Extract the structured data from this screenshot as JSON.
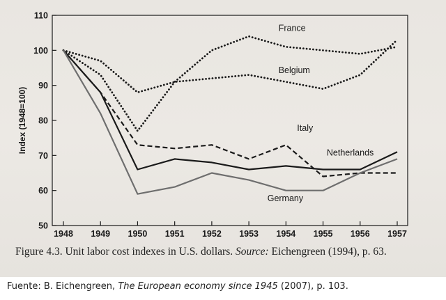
{
  "chart_data": {
    "type": "line",
    "title": "",
    "xlabel": "",
    "ylabel": "Index (1948=100)",
    "x": [
      1948,
      1949,
      1950,
      1951,
      1952,
      1953,
      1954,
      1955,
      1956,
      1957
    ],
    "xlim": [
      1948,
      1957
    ],
    "ylim": [
      50,
      110
    ],
    "yticks": [
      50,
      60,
      70,
      80,
      90,
      100,
      110
    ],
    "grid": false,
    "series": [
      {
        "name": "France",
        "style": "dotted",
        "values": [
          100,
          93,
          77,
          91,
          100,
          104,
          101,
          100,
          99,
          101
        ]
      },
      {
        "name": "Belgium",
        "style": "dotted",
        "values": [
          100,
          97,
          88,
          91,
          92,
          93,
          91,
          89,
          93,
          103
        ]
      },
      {
        "name": "Italy",
        "style": "dashed",
        "values": [
          100,
          88,
          73,
          72,
          73,
          69,
          73,
          64,
          65,
          65
        ]
      },
      {
        "name": "Netherlands",
        "style": "solid",
        "values": [
          100,
          88,
          66,
          69,
          68,
          66,
          67,
          66,
          66,
          71
        ]
      },
      {
        "name": "Germany",
        "style": "solid-gray",
        "values": [
          100,
          82,
          59,
          61,
          65,
          63,
          60,
          60,
          65,
          69
        ]
      }
    ],
    "annotations": [
      "France",
      "Belgium",
      "Italy",
      "Netherlands",
      "Germany"
    ]
  },
  "caption": {
    "figure_label": "Figure 4.3.",
    "text": "Unit labor cost indexes in U.S. dollars.",
    "source_label": "Source:",
    "source_text": "Eichengreen (1994), p. 63."
  },
  "footer": {
    "prefix": "Fuente: B. Eichengreen,",
    "book_title": "The European economy since 1945",
    "suffix": "(2007), p. 103."
  },
  "colors": {
    "background": "#ece9e4",
    "ink": "#1a1a1a",
    "germany": "#6e6e6e"
  }
}
